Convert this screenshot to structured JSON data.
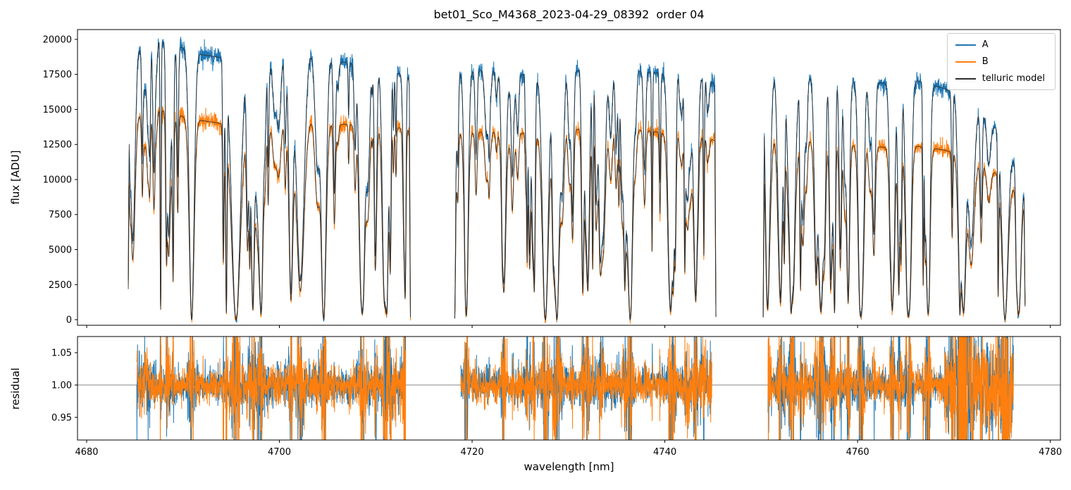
{
  "chart_data": {
    "type": "line",
    "title": "bet01_Sco_M4368_2023-04-29_08392  order 04",
    "xlabel": "wavelength [nm]",
    "xlim": [
      4679.05,
      4781.05
    ],
    "xticks": [
      4680,
      4700,
      4720,
      4740,
      4760,
      4780
    ],
    "segments": [
      [
        4684.3,
        4713.6
      ],
      [
        4718.2,
        4745.3
      ],
      [
        4750.2,
        4777.4
      ]
    ],
    "series": [
      {
        "name": "A",
        "color": "#1f77b4",
        "role": "spectrum"
      },
      {
        "name": "B",
        "color": "#ff7f0e",
        "role": "spectrum"
      },
      {
        "name": "telluric model",
        "color": "#2d2d2d",
        "role": "model"
      }
    ],
    "panels": [
      {
        "name": "flux",
        "ylabel": "flux [ADU]",
        "ylim": [
          -400,
          20700
        ],
        "yticks": [
          0,
          2500,
          5000,
          7500,
          10000,
          12500,
          15000,
          17500,
          20000
        ],
        "legend_loc": "upper right"
      },
      {
        "name": "residual",
        "ylabel": "residual",
        "ylim": [
          0.915,
          1.075
        ],
        "yticks": [
          0.95,
          1.0,
          1.05
        ],
        "hline": 1.0,
        "hline_color": "#888888",
        "segments": [
          [
            4685.2,
            4713.1
          ],
          [
            4718.8,
            4744.9
          ],
          [
            4750.7,
            4776.2
          ]
        ],
        "flare_zones": [
          [
            4685.2,
            4686.3,
            1.9
          ],
          [
            4711.3,
            4713.1,
            1.7
          ],
          [
            4743.6,
            4744.9,
            2.2
          ],
          [
            4769.0,
            4776.2,
            2.8
          ]
        ]
      }
    ],
    "continuum": {
      "x": [
        4684.3,
        4686,
        4688,
        4690,
        4692,
        4695,
        4697,
        4700,
        4703,
        4706,
        4709,
        4712,
        4713.6,
        4718.2,
        4721,
        4725,
        4729,
        4732,
        4735,
        4738,
        4741,
        4744,
        4745.3,
        4750.2,
        4753,
        4757,
        4760,
        4763,
        4766,
        4769,
        4771,
        4773,
        4775,
        4776.5,
        4777.4
      ],
      "A": [
        18700,
        20200,
        19800,
        19400,
        18900,
        18600,
        18700,
        19000,
        19200,
        18500,
        18000,
        17600,
        17400,
        17600,
        17800,
        17500,
        17500,
        17900,
        17900,
        17700,
        17500,
        17200,
        16800,
        17300,
        17400,
        17100,
        16900,
        16900,
        17100,
        16500,
        15800,
        14800,
        13200,
        11000,
        8800
      ],
      "B": [
        14300,
        15150,
        14900,
        14500,
        14200,
        13900,
        13900,
        14200,
        14300,
        14000,
        13800,
        13700,
        13600,
        13300,
        13400,
        13300,
        13400,
        13700,
        13700,
        13500,
        13200,
        13000,
        12800,
        12800,
        12900,
        12600,
        12400,
        12300,
        12400,
        12100,
        11700,
        11100,
        10200,
        9200,
        8000
      ]
    },
    "telluric_deep_lines": [
      [
        4690.9,
        1.0,
        0.25
      ],
      [
        4695.5,
        1.0,
        0.45
      ],
      [
        4698.1,
        0.95,
        0.2
      ],
      [
        4701.2,
        0.9,
        0.2
      ],
      [
        4704.6,
        1.0,
        0.25
      ],
      [
        4708.6,
        0.95,
        0.25
      ],
      [
        4711.1,
        0.9,
        0.2
      ],
      [
        4719.4,
        0.9,
        0.2
      ],
      [
        4723.3,
        0.85,
        0.2
      ],
      [
        4727.6,
        1.0,
        0.3
      ],
      [
        4728.8,
        1.0,
        0.25
      ],
      [
        4732.0,
        0.85,
        0.18
      ],
      [
        4736.4,
        1.0,
        0.25
      ],
      [
        4740.6,
        0.95,
        0.25
      ],
      [
        4743.2,
        0.9,
        0.2
      ],
      [
        4752.0,
        0.9,
        0.2
      ],
      [
        4756.2,
        0.95,
        0.25
      ],
      [
        4760.3,
        0.9,
        0.2
      ],
      [
        4763.6,
        0.95,
        0.22
      ],
      [
        4767.3,
        0.9,
        0.2
      ],
      [
        4771.0,
        0.95,
        0.25
      ],
      [
        4775.3,
        1.0,
        0.3
      ]
    ],
    "telluric_random_lines": {
      "count": 215,
      "seed": 7,
      "range": [
        4683.5,
        4778.0
      ],
      "width_range": [
        0.05,
        0.28
      ]
    },
    "noise": {
      "flux_fraction": 0.011,
      "flux_floor_adu": 120,
      "residual_sigma": 0.013
    },
    "edge_ramp_nm": 0.12
  }
}
